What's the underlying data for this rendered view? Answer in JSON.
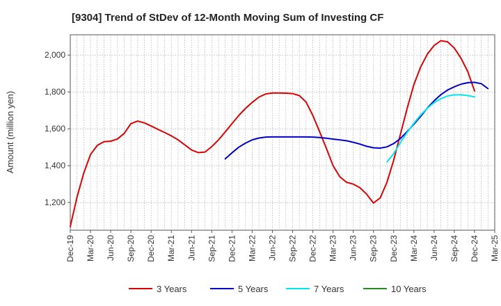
{
  "chart_data": {
    "type": "line",
    "title": "[9304]  Trend of StDev of 12-Month Moving Sum of Investing CF",
    "xlabel": "",
    "ylabel": "Amount (million yen)",
    "ylim": [
      1050,
      2110
    ],
    "yticks": [
      1200,
      1400,
      1600,
      1800,
      2000
    ],
    "ytick_labels": [
      "1,200",
      "1,400",
      "1,600",
      "1,800",
      "2,000"
    ],
    "xtick_labels": [
      "Dec-19",
      "Mar-20",
      "Jun-20",
      "Sep-20",
      "Dec-20",
      "Mar-21",
      "Jun-21",
      "Sep-21",
      "Dec-21",
      "Mar-22",
      "Jun-22",
      "Sep-22",
      "Dec-22",
      "Mar-23",
      "Jun-23",
      "Sep-23",
      "Dec-23",
      "Mar-24",
      "Jun-24",
      "Sep-24",
      "Dec-24",
      "Mar-25"
    ],
    "grid": true,
    "legend_position": "bottom",
    "series": [
      {
        "name": "3 Years",
        "color": "#dd0000",
        "start_month": "Dec-19",
        "values": [
          1070,
          1230,
          1360,
          1460,
          1510,
          1530,
          1533,
          1545,
          1575,
          1628,
          1642,
          1632,
          1615,
          1597,
          1580,
          1562,
          1540,
          1513,
          1485,
          1471,
          1474,
          1503,
          1540,
          1583,
          1628,
          1672,
          1710,
          1743,
          1772,
          1789,
          1794,
          1794,
          1793,
          1791,
          1780,
          1745,
          1672,
          1585,
          1495,
          1400,
          1340,
          1310,
          1300,
          1280,
          1245,
          1197,
          1225,
          1310,
          1430,
          1570,
          1710,
          1840,
          1935,
          2005,
          2052,
          2078,
          2072,
          2038,
          1982,
          1910,
          1805
        ]
      },
      {
        "name": "5 Years",
        "color": "#0000cc",
        "start_month": "Nov-21",
        "values": [
          1437,
          1470,
          1500,
          1522,
          1540,
          1550,
          1555,
          1556,
          1556,
          1556,
          1556,
          1556,
          1556,
          1555,
          1553,
          1549,
          1544,
          1540,
          1535,
          1527,
          1517,
          1505,
          1497,
          1495,
          1502,
          1520,
          1547,
          1585,
          1625,
          1667,
          1713,
          1752,
          1785,
          1810,
          1828,
          1842,
          1850,
          1852,
          1845,
          1818
        ]
      },
      {
        "name": "7 Years",
        "color": "#00e5ee",
        "start_month": "Nov-23",
        "values": [
          1420,
          1465,
          1525,
          1580,
          1630,
          1675,
          1712,
          1742,
          1763,
          1778,
          1784,
          1784,
          1780,
          1773
        ]
      },
      {
        "name": "10 Years",
        "color": "#228b22",
        "start_month": "",
        "values": []
      }
    ]
  }
}
